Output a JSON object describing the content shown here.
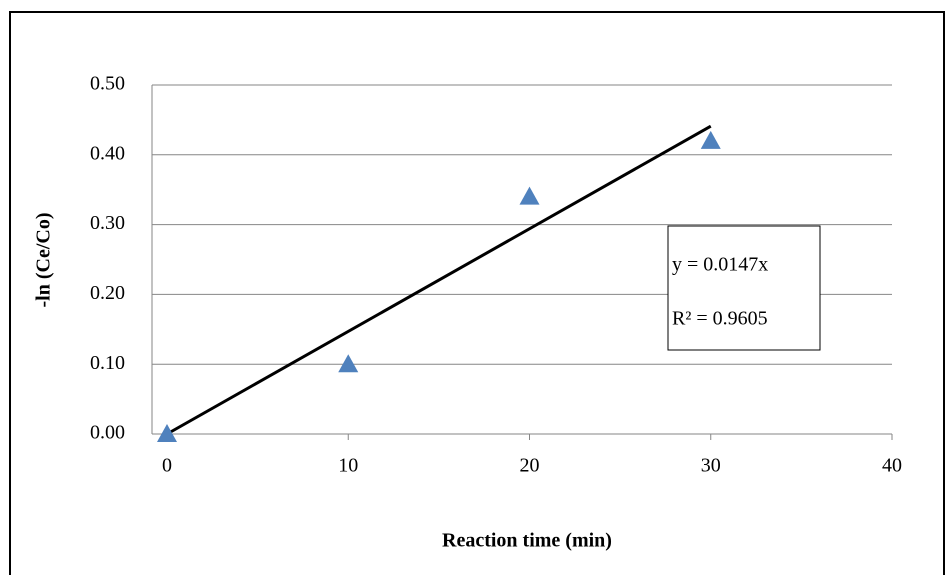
{
  "chart_data": {
    "type": "scatter",
    "x_label": "Reaction time (min)",
    "y_label": "-ln (Ce/Co)",
    "x": [
      0,
      10,
      20,
      30
    ],
    "values": [
      0,
      0.1,
      0.34,
      0.42
    ],
    "color": "#4f81bd",
    "xlim": [
      0,
      40
    ],
    "xticks": [
      0,
      10,
      20,
      30,
      40
    ],
    "ylim": [
      0,
      0.5
    ],
    "yticks": [
      {
        "value": 0,
        "label": "0.00"
      },
      {
        "value": 0.1,
        "label": "0.10"
      },
      {
        "value": 0.2,
        "label": "0.20"
      },
      {
        "value": 0.3,
        "label": "0.30"
      },
      {
        "value": 0.4,
        "label": "0.40"
      },
      {
        "value": 0.5,
        "label": "0.50"
      }
    ],
    "grid": true,
    "trendline": {
      "slope": 0.0147,
      "equation": "y = 0.0147x",
      "r_squared": "R² = 0.9605"
    }
  }
}
